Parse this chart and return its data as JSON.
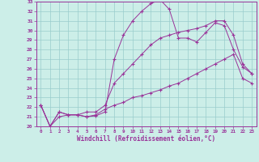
{
  "xlabel": "Windchill (Refroidissement éolien,°C)",
  "xlim": [
    -0.5,
    23.5
  ],
  "ylim": [
    20,
    33
  ],
  "xticks": [
    0,
    1,
    2,
    3,
    4,
    5,
    6,
    7,
    8,
    9,
    10,
    11,
    12,
    13,
    14,
    15,
    16,
    17,
    18,
    19,
    20,
    21,
    22,
    23
  ],
  "yticks": [
    20,
    21,
    22,
    23,
    24,
    25,
    26,
    27,
    28,
    29,
    30,
    31,
    32,
    33
  ],
  "background_color": "#cceee8",
  "line_color": "#993399",
  "grid_color": "#99cccc",
  "line1_x": [
    0,
    1,
    2,
    3,
    4,
    5,
    6,
    7,
    8,
    9,
    10,
    11,
    12,
    13,
    14,
    15,
    16,
    17,
    18,
    19,
    20,
    21,
    22,
    23
  ],
  "line1_y": [
    22.2,
    20.0,
    21.5,
    21.2,
    21.2,
    21.0,
    21.1,
    21.5,
    27.0,
    29.5,
    31.0,
    32.0,
    32.8,
    33.2,
    32.2,
    29.2,
    29.2,
    28.8,
    29.8,
    30.8,
    30.5,
    28.0,
    26.2,
    25.5
  ],
  "line2_x": [
    0,
    1,
    2,
    3,
    4,
    5,
    6,
    7,
    8,
    9,
    10,
    11,
    12,
    13,
    14,
    15,
    16,
    17,
    18,
    19,
    20,
    21,
    22,
    23
  ],
  "line2_y": [
    22.2,
    20.0,
    21.5,
    21.2,
    21.2,
    21.5,
    21.5,
    22.2,
    24.5,
    25.5,
    26.5,
    27.5,
    28.5,
    29.2,
    29.5,
    29.8,
    30.0,
    30.2,
    30.5,
    31.0,
    31.0,
    29.5,
    26.5,
    25.5
  ],
  "line3_x": [
    0,
    1,
    2,
    3,
    4,
    5,
    6,
    7,
    8,
    9,
    10,
    11,
    12,
    13,
    14,
    15,
    16,
    17,
    18,
    19,
    20,
    21,
    22,
    23
  ],
  "line3_y": [
    22.2,
    20.0,
    21.0,
    21.2,
    21.2,
    21.0,
    21.2,
    21.8,
    22.2,
    22.5,
    23.0,
    23.2,
    23.5,
    23.8,
    24.2,
    24.5,
    25.0,
    25.5,
    26.0,
    26.5,
    27.0,
    27.5,
    25.0,
    24.5
  ]
}
